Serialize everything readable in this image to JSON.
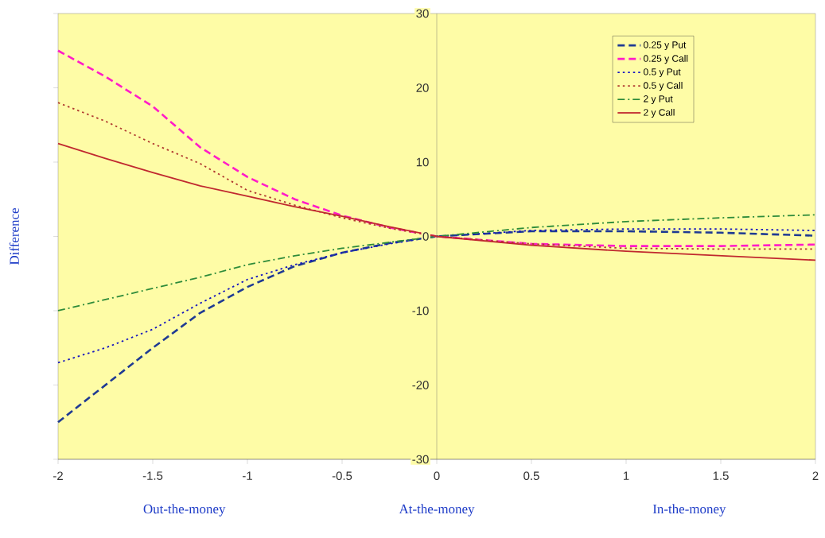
{
  "chart_data": {
    "type": "line",
    "ylabel": "Difference",
    "annotations": [
      "Out-the-money",
      "At-the-money",
      "In-the-money"
    ],
    "x": [
      -2,
      -1.75,
      -1.5,
      -1.25,
      -1,
      -0.75,
      -0.5,
      -0.25,
      0,
      0.5,
      1,
      1.5,
      2
    ],
    "xlim": [
      -2,
      2
    ],
    "xticks": [
      -2,
      -1.5,
      -1,
      -0.5,
      0,
      0.5,
      1,
      1.5,
      2
    ],
    "ylim": [
      -30,
      30
    ],
    "yticks": [
      -30,
      -20,
      -10,
      0,
      10,
      20,
      30
    ],
    "grid": false,
    "legend": "top right",
    "series": [
      {
        "name": "0.25 y Put",
        "color": "#1f3a93",
        "line_style": "dashed",
        "values": [
          -25,
          -20,
          -15,
          -10.3,
          -6.8,
          -4,
          -2.2,
          -0.9,
          0,
          0.7,
          0.7,
          0.5,
          0.1
        ]
      },
      {
        "name": "0.25 y Call",
        "color": "#ff1cc8",
        "line_style": "dashed",
        "values": [
          25,
          21.5,
          17.5,
          12,
          8,
          5,
          2.8,
          1.2,
          0,
          -1,
          -1.3,
          -1.3,
          -1.1
        ]
      },
      {
        "name": "0.5 y Put",
        "color": "#1414c0",
        "line_style": "dotted",
        "values": [
          -17,
          -15,
          -12.5,
          -9,
          -5.8,
          -3.8,
          -2.2,
          -1,
          0,
          0.8,
          1,
          1,
          0.8
        ]
      },
      {
        "name": "0.5 y Call",
        "color": "#b03a30",
        "line_style": "dotted",
        "values": [
          18,
          15.5,
          12.5,
          9.8,
          6.2,
          4.2,
          2.5,
          1.1,
          0,
          -1,
          -1.6,
          -1.7,
          -1.7
        ]
      },
      {
        "name": "2 y Put",
        "color": "#2e8b3a",
        "line_style": "dashdot",
        "values": [
          -10,
          -8.5,
          -7,
          -5.5,
          -3.8,
          -2.6,
          -1.6,
          -0.8,
          0,
          1.2,
          2,
          2.5,
          2.9
        ]
      },
      {
        "name": "2 y Call",
        "color": "#c0282f",
        "line_style": "solid",
        "values": [
          12.5,
          10.5,
          8.6,
          6.8,
          5.4,
          4,
          2.7,
          1.3,
          0,
          -1.2,
          -2,
          -2.6,
          -3.2
        ]
      }
    ]
  }
}
